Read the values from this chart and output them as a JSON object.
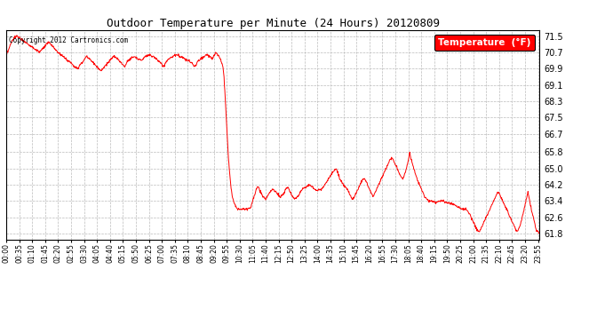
{
  "title": "Outdoor Temperature per Minute (24 Hours) 20120809",
  "copyright_text": "Copyright 2012 Cartronics.com",
  "legend_label": "Temperature  (°F)",
  "line_color": "red",
  "bg_color": "white",
  "grid_color": "#bbbbbb",
  "yticks": [
    61.8,
    62.6,
    63.4,
    64.2,
    65.0,
    65.8,
    66.7,
    67.5,
    68.3,
    69.1,
    69.9,
    70.7,
    71.5
  ],
  "ylim": [
    61.5,
    71.8
  ],
  "num_minutes": 1440,
  "x_tick_interval": 35,
  "x_tick_labels": [
    "00:00",
    "00:35",
    "01:10",
    "01:45",
    "02:20",
    "02:55",
    "03:30",
    "04:05",
    "04:40",
    "05:15",
    "05:50",
    "06:25",
    "07:00",
    "07:35",
    "08:10",
    "08:45",
    "09:20",
    "09:55",
    "10:30",
    "11:05",
    "11:40",
    "12:15",
    "12:50",
    "13:25",
    "14:00",
    "14:35",
    "15:10",
    "15:45",
    "16:20",
    "16:55",
    "17:30",
    "18:05",
    "18:40",
    "19:15",
    "19:50",
    "20:25",
    "21:00",
    "21:35",
    "22:10",
    "22:45",
    "23:20",
    "23:55"
  ],
  "ctrl_points": [
    [
      0,
      70.5
    ],
    [
      10,
      71.0
    ],
    [
      20,
      71.4
    ],
    [
      30,
      71.5
    ],
    [
      45,
      71.3
    ],
    [
      60,
      71.1
    ],
    [
      75,
      70.9
    ],
    [
      90,
      70.7
    ],
    [
      105,
      71.0
    ],
    [
      115,
      71.2
    ],
    [
      125,
      71.0
    ],
    [
      135,
      70.8
    ],
    [
      145,
      70.6
    ],
    [
      155,
      70.5
    ],
    [
      165,
      70.3
    ],
    [
      175,
      70.2
    ],
    [
      185,
      70.0
    ],
    [
      195,
      69.9
    ],
    [
      200,
      70.1
    ],
    [
      210,
      70.3
    ],
    [
      215,
      70.5
    ],
    [
      225,
      70.4
    ],
    [
      235,
      70.2
    ],
    [
      245,
      70.0
    ],
    [
      255,
      69.8
    ],
    [
      260,
      69.9
    ],
    [
      270,
      70.1
    ],
    [
      280,
      70.3
    ],
    [
      290,
      70.5
    ],
    [
      300,
      70.4
    ],
    [
      310,
      70.2
    ],
    [
      320,
      70.0
    ],
    [
      325,
      70.2
    ],
    [
      335,
      70.4
    ],
    [
      345,
      70.5
    ],
    [
      355,
      70.4
    ],
    [
      365,
      70.3
    ],
    [
      375,
      70.5
    ],
    [
      385,
      70.6
    ],
    [
      395,
      70.5
    ],
    [
      405,
      70.4
    ],
    [
      415,
      70.2
    ],
    [
      425,
      70.0
    ],
    [
      430,
      70.2
    ],
    [
      440,
      70.4
    ],
    [
      450,
      70.5
    ],
    [
      460,
      70.6
    ],
    [
      470,
      70.5
    ],
    [
      480,
      70.4
    ],
    [
      490,
      70.3
    ],
    [
      500,
      70.2
    ],
    [
      510,
      70.0
    ],
    [
      515,
      70.2
    ],
    [
      525,
      70.4
    ],
    [
      535,
      70.5
    ],
    [
      540,
      70.6
    ],
    [
      550,
      70.5
    ],
    [
      555,
      70.4
    ],
    [
      560,
      70.5
    ],
    [
      565,
      70.7
    ],
    [
      570,
      70.6
    ],
    [
      575,
      70.5
    ],
    [
      580,
      70.3
    ],
    [
      585,
      70.0
    ],
    [
      588,
      69.5
    ],
    [
      591,
      68.5
    ],
    [
      594,
      67.5
    ],
    [
      597,
      66.5
    ],
    [
      600,
      65.5
    ],
    [
      603,
      64.8
    ],
    [
      606,
      64.2
    ],
    [
      609,
      63.8
    ],
    [
      612,
      63.5
    ],
    [
      615,
      63.3
    ],
    [
      618,
      63.2
    ],
    [
      621,
      63.1
    ],
    [
      625,
      63.0
    ],
    [
      630,
      63.0
    ],
    [
      640,
      63.0
    ],
    [
      650,
      63.0
    ],
    [
      660,
      63.1
    ],
    [
      665,
      63.4
    ],
    [
      670,
      63.7
    ],
    [
      675,
      64.0
    ],
    [
      680,
      64.1
    ],
    [
      685,
      63.9
    ],
    [
      690,
      63.7
    ],
    [
      695,
      63.6
    ],
    [
      700,
      63.5
    ],
    [
      705,
      63.6
    ],
    [
      710,
      63.8
    ],
    [
      715,
      63.9
    ],
    [
      720,
      64.0
    ],
    [
      725,
      63.9
    ],
    [
      730,
      63.8
    ],
    [
      735,
      63.7
    ],
    [
      740,
      63.6
    ],
    [
      745,
      63.7
    ],
    [
      750,
      63.8
    ],
    [
      755,
      64.0
    ],
    [
      760,
      64.1
    ],
    [
      765,
      63.9
    ],
    [
      770,
      63.7
    ],
    [
      775,
      63.6
    ],
    [
      780,
      63.5
    ],
    [
      785,
      63.6
    ],
    [
      790,
      63.7
    ],
    [
      795,
      63.9
    ],
    [
      800,
      64.0
    ],
    [
      810,
      64.1
    ],
    [
      820,
      64.2
    ],
    [
      830,
      64.0
    ],
    [
      840,
      63.9
    ],
    [
      850,
      64.0
    ],
    [
      860,
      64.2
    ],
    [
      870,
      64.5
    ],
    [
      880,
      64.8
    ],
    [
      885,
      64.9
    ],
    [
      890,
      65.0
    ],
    [
      895,
      64.8
    ],
    [
      900,
      64.5
    ],
    [
      910,
      64.2
    ],
    [
      920,
      64.0
    ],
    [
      925,
      63.8
    ],
    [
      930,
      63.6
    ],
    [
      935,
      63.5
    ],
    [
      940,
      63.6
    ],
    [
      945,
      63.8
    ],
    [
      950,
      64.0
    ],
    [
      955,
      64.2
    ],
    [
      960,
      64.4
    ],
    [
      965,
      64.5
    ],
    [
      970,
      64.4
    ],
    [
      975,
      64.2
    ],
    [
      980,
      64.0
    ],
    [
      985,
      63.8
    ],
    [
      990,
      63.6
    ],
    [
      995,
      63.8
    ],
    [
      1000,
      64.0
    ],
    [
      1005,
      64.2
    ],
    [
      1010,
      64.4
    ],
    [
      1015,
      64.6
    ],
    [
      1020,
      64.8
    ],
    [
      1025,
      65.0
    ],
    [
      1030,
      65.2
    ],
    [
      1035,
      65.4
    ],
    [
      1040,
      65.5
    ],
    [
      1045,
      65.4
    ],
    [
      1050,
      65.2
    ],
    [
      1055,
      65.0
    ],
    [
      1060,
      64.8
    ],
    [
      1065,
      64.6
    ],
    [
      1070,
      64.5
    ],
    [
      1075,
      64.7
    ],
    [
      1080,
      65.0
    ],
    [
      1085,
      65.4
    ],
    [
      1087,
      65.6
    ],
    [
      1089,
      65.8
    ],
    [
      1091,
      65.6
    ],
    [
      1095,
      65.3
    ],
    [
      1100,
      65.0
    ],
    [
      1105,
      64.7
    ],
    [
      1110,
      64.4
    ],
    [
      1115,
      64.2
    ],
    [
      1120,
      64.0
    ],
    [
      1125,
      63.8
    ],
    [
      1130,
      63.6
    ],
    [
      1135,
      63.5
    ],
    [
      1140,
      63.4
    ],
    [
      1150,
      63.4
    ],
    [
      1160,
      63.3
    ],
    [
      1170,
      63.4
    ],
    [
      1180,
      63.4
    ],
    [
      1190,
      63.3
    ],
    [
      1200,
      63.3
    ],
    [
      1210,
      63.2
    ],
    [
      1220,
      63.1
    ],
    [
      1230,
      63.0
    ],
    [
      1240,
      63.0
    ],
    [
      1250,
      62.8
    ],
    [
      1255,
      62.6
    ],
    [
      1260,
      62.4
    ],
    [
      1265,
      62.2
    ],
    [
      1270,
      62.0
    ],
    [
      1275,
      61.9
    ],
    [
      1280,
      62.0
    ],
    [
      1285,
      62.2
    ],
    [
      1290,
      62.4
    ],
    [
      1295,
      62.6
    ],
    [
      1300,
      62.8
    ],
    [
      1305,
      63.0
    ],
    [
      1310,
      63.2
    ],
    [
      1315,
      63.4
    ],
    [
      1320,
      63.6
    ],
    [
      1325,
      63.8
    ],
    [
      1330,
      63.8
    ],
    [
      1335,
      63.6
    ],
    [
      1340,
      63.4
    ],
    [
      1345,
      63.2
    ],
    [
      1350,
      63.0
    ],
    [
      1355,
      62.8
    ],
    [
      1360,
      62.6
    ],
    [
      1365,
      62.4
    ],
    [
      1370,
      62.2
    ],
    [
      1375,
      62.0
    ],
    [
      1380,
      61.9
    ],
    [
      1385,
      62.1
    ],
    [
      1390,
      62.4
    ],
    [
      1395,
      62.8
    ],
    [
      1400,
      63.2
    ],
    [
      1405,
      63.6
    ],
    [
      1408,
      63.8
    ],
    [
      1411,
      63.6
    ],
    [
      1415,
      63.2
    ],
    [
      1420,
      62.8
    ],
    [
      1425,
      62.4
    ],
    [
      1430,
      62.0
    ],
    [
      1435,
      61.9
    ],
    [
      1439,
      61.8
    ]
  ]
}
